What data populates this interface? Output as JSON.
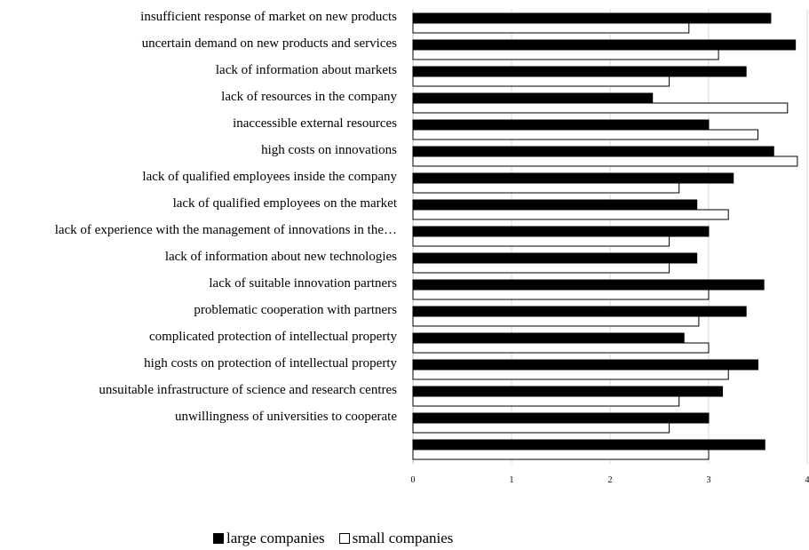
{
  "chart_data": {
    "type": "bar",
    "orientation": "horizontal",
    "categories": [
      "insufficient response of market on new products",
      "uncertain demand on new products and services",
      "lack of information about markets",
      "lack of resources in the company",
      "inaccessible external resources",
      "high costs on innovations",
      "lack of qualified employees inside the company",
      "lack of qualified employees on the market",
      "lack of experience with the management of innovations in the…",
      "lack of information about new technologies",
      "lack of suitable innovation partners",
      "problematic cooperation with partners",
      "complicated protection of intellectual property",
      "high costs on protection of intellectual property",
      "unsuitable infrastructure of science and research centres",
      "unwillingness of universities to cooperate",
      ""
    ],
    "series": [
      {
        "name": "large companies",
        "color": "#000000",
        "values": [
          3.63,
          3.88,
          3.38,
          2.43,
          3.0,
          3.66,
          3.25,
          2.88,
          3.0,
          2.88,
          3.56,
          3.38,
          2.75,
          3.5,
          3.14,
          3.0,
          3.57
        ]
      },
      {
        "name": "small companies",
        "color": "#ffffff",
        "values": [
          2.8,
          3.1,
          2.6,
          3.8,
          3.5,
          3.9,
          2.7,
          3.2,
          2.6,
          2.6,
          3.0,
          2.9,
          3.0,
          3.2,
          2.7,
          2.6,
          3.0
        ]
      }
    ],
    "xlim": [
      0,
      4
    ],
    "xticks": [
      0,
      1,
      2,
      3,
      4
    ],
    "title": "",
    "xlabel": "",
    "ylabel": "",
    "grid": "vertical",
    "legend_position": "bottom"
  }
}
